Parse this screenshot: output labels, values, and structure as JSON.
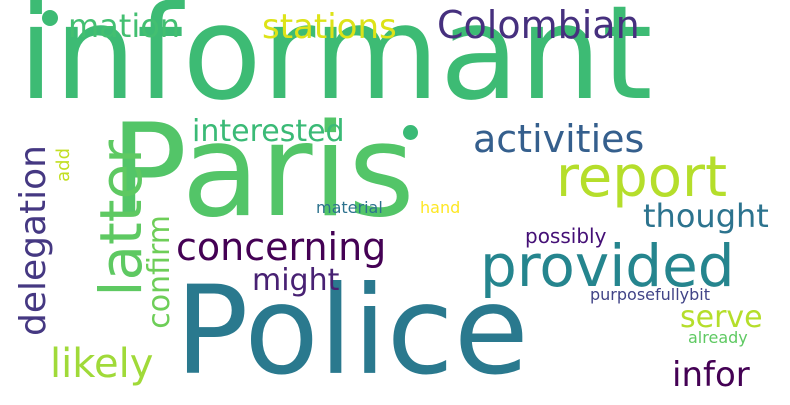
{
  "words": {
    "informant": "informant",
    "paris": "Paris",
    "police": "Police",
    "mation": "mation",
    "stations": "stations",
    "colombian": "Colombian",
    "interested": "interested",
    "activities": "activities",
    "report": "report",
    "latter": "latter",
    "delegation": "delegation",
    "add": "add",
    "confirm": "confirm",
    "concerning": "concerning",
    "material": "material",
    "hand": "hand",
    "thought": "thought",
    "possibly": "possibly",
    "provided": "provided",
    "might": "might",
    "purposefullybit": "purposefullybit",
    "serve": "serve",
    "already": "already",
    "likely": "likely",
    "infor": "infor"
  },
  "colors": {
    "informant": "#3dbb74",
    "paris": "#53c568",
    "police": "#2a798e",
    "mation": "#43bf71",
    "stations": "#dde318",
    "colombian": "#46307e",
    "interested": "#3aba76",
    "activities": "#355f8d",
    "report": "#b5de2b",
    "latter": "#5ec962",
    "delegation": "#453882",
    "add": "#c2df23",
    "confirm": "#6ece58",
    "concerning": "#440154",
    "material": "#2c728e",
    "hand": "#fde725",
    "thought": "#2c738e",
    "possibly": "#440f76",
    "provided": "#25858e",
    "might": "#482173",
    "purposefullybit": "#414487",
    "serve": "#b5de2b",
    "already": "#5ec962",
    "likely": "#a0da39",
    "infor": "#440154"
  }
}
